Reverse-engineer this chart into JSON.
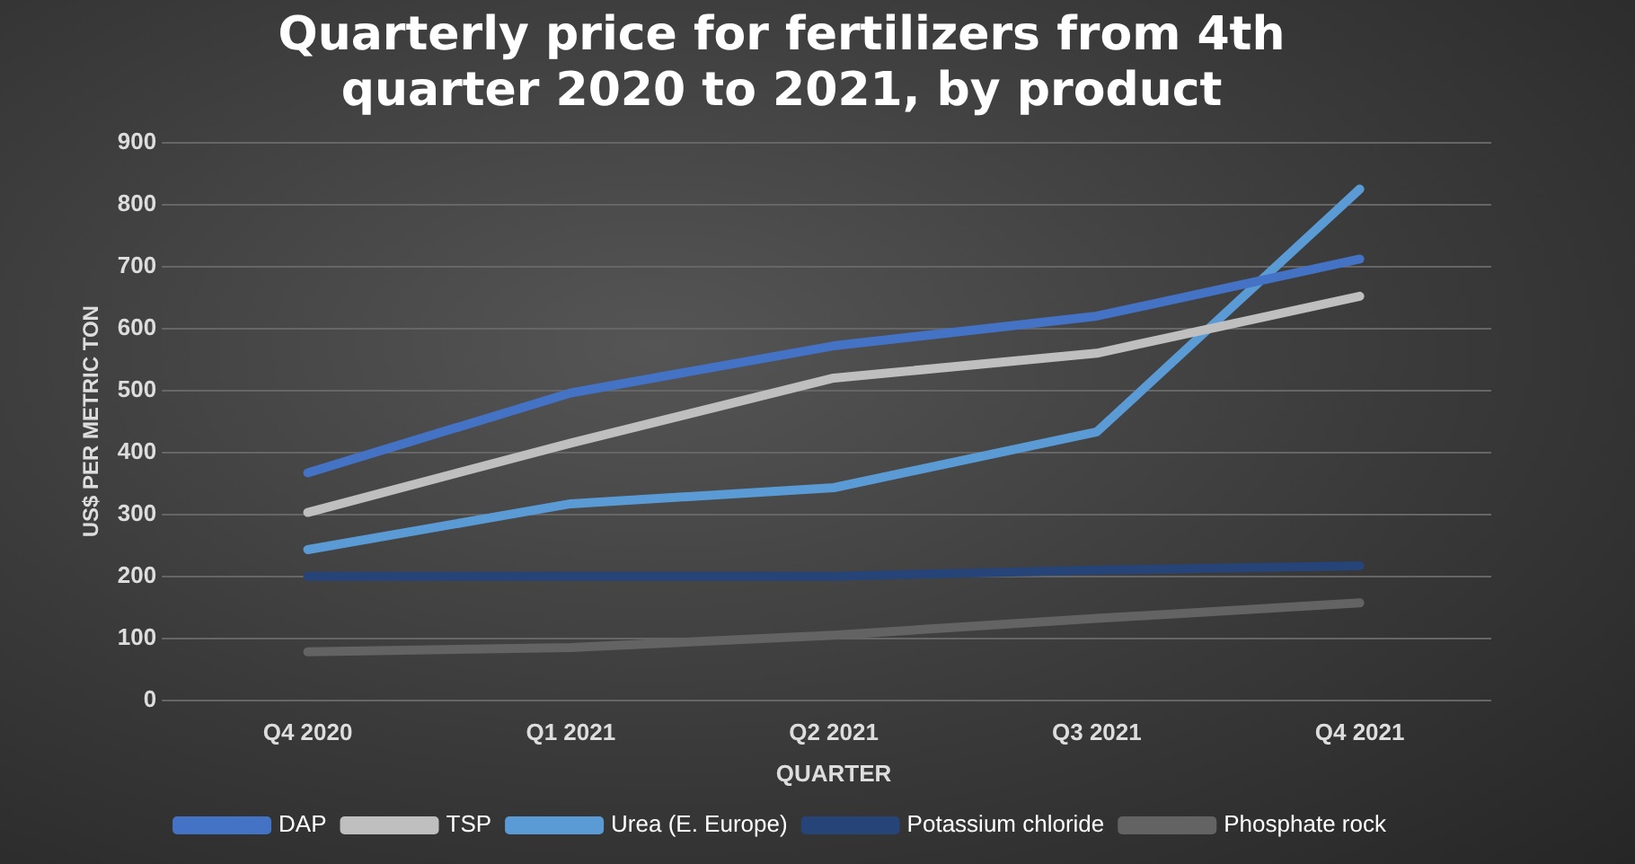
{
  "chart_data": {
    "type": "line",
    "title": "Quarterly price for fertilizers from 4th quarter 2020 to 2021, by product",
    "xlabel": "QUARTER",
    "ylabel": "US$ PER METRIC TON",
    "categories": [
      "Q4 2020",
      "Q1 2021",
      "Q2 2021",
      "Q3 2021",
      "Q4 2021"
    ],
    "series": [
      {
        "name": "DAP",
        "color": "#4472c4",
        "values": [
          367,
          496,
          572,
          620,
          712
        ]
      },
      {
        "name": "TSP",
        "color": "#bfbfbf",
        "values": [
          303,
          415,
          520,
          560,
          652
        ]
      },
      {
        "name": "Urea (E. Europe)",
        "color": "#5b9bd5",
        "values": [
          243,
          317,
          343,
          433,
          825
        ]
      },
      {
        "name": "Potassium chloride",
        "color": "#264478",
        "values": [
          200,
          200,
          200,
          210,
          217
        ]
      },
      {
        "name": "Phosphate rock",
        "color": "#636363",
        "values": [
          78,
          85,
          105,
          132,
          157
        ]
      }
    ],
    "ylim": [
      0,
      900
    ],
    "yticks": [
      0,
      100,
      200,
      300,
      400,
      500,
      600,
      700,
      800,
      900
    ],
    "grid": "y",
    "legend": "bottom",
    "marker": "none",
    "line_style": "solid"
  }
}
